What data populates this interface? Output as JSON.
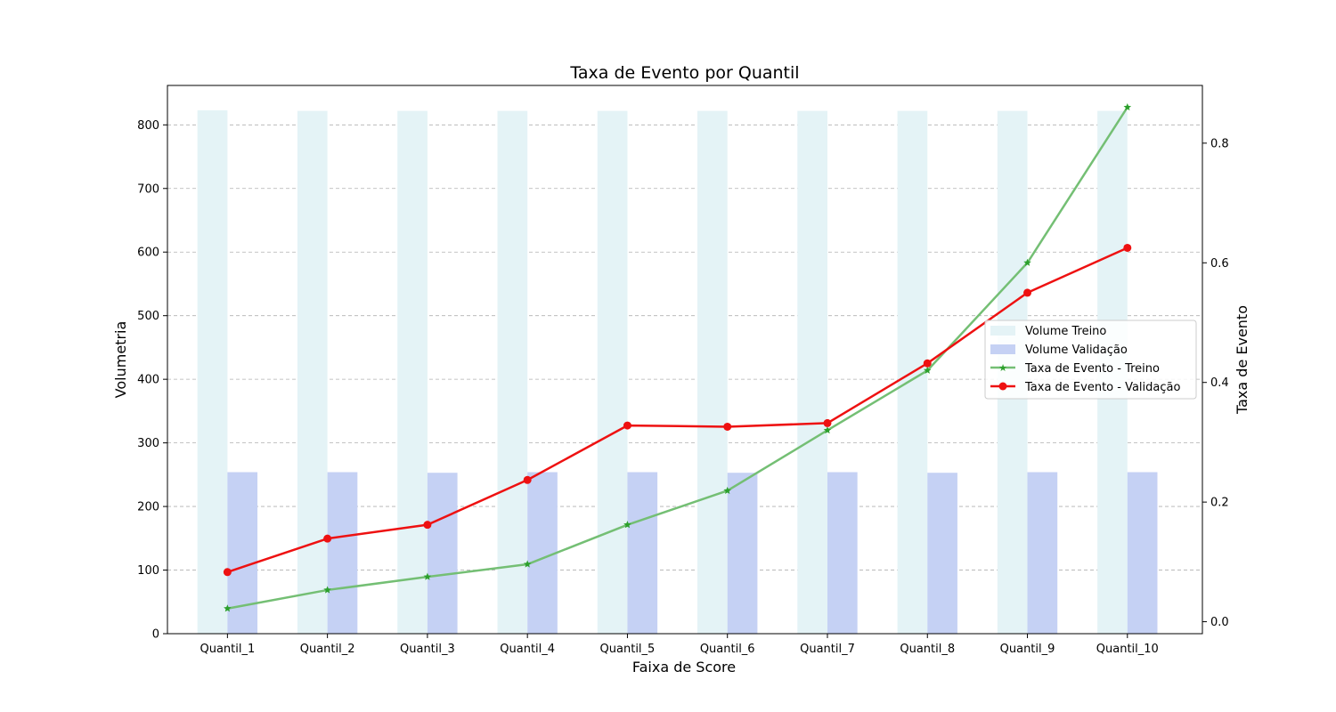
{
  "chart_data": {
    "type": "bar",
    "title": "Taxa de Evento por Quantil",
    "xlabel": "Faixa de Score",
    "ylabel": "Volumetria",
    "y2label": "Taxa de Evento",
    "categories": [
      "Quantil_1",
      "Quantil_2",
      "Quantil_3",
      "Quantil_4",
      "Quantil_5",
      "Quantil_6",
      "Quantil_7",
      "Quantil_8",
      "Quantil_9",
      "Quantil_10"
    ],
    "ylim": [
      0,
      862
    ],
    "y2lim": [
      -0.02,
      0.8965
    ],
    "yticks": [
      0,
      100,
      200,
      300,
      400,
      500,
      600,
      700,
      800
    ],
    "y2ticks": [
      0.0,
      0.2,
      0.4,
      0.6,
      0.8
    ],
    "grid": true,
    "legend_position": "center-right",
    "bar_series": [
      {
        "name": "Volume Treino",
        "color": "#e4f3f6",
        "values": [
          823,
          822,
          822,
          822,
          822,
          822,
          822,
          822,
          822,
          822
        ]
      },
      {
        "name": "Volume Validação",
        "color": "#c5d1f4",
        "values": [
          254,
          254,
          253,
          254,
          254,
          253,
          254,
          253,
          254,
          254
        ]
      }
    ],
    "line_series": [
      {
        "name": "Taxa de Evento - Treino",
        "color": "#74bf74",
        "marker": "star",
        "values": [
          0.022,
          0.053,
          0.075,
          0.096,
          0.162,
          0.219,
          0.32,
          0.42,
          0.6,
          0.86
        ]
      },
      {
        "name": "Taxa de Evento - Validação",
        "color": "#ee1111",
        "marker": "circle",
        "values": [
          0.083,
          0.139,
          0.162,
          0.237,
          0.328,
          0.326,
          0.332,
          0.432,
          0.55,
          0.625
        ]
      }
    ]
  }
}
